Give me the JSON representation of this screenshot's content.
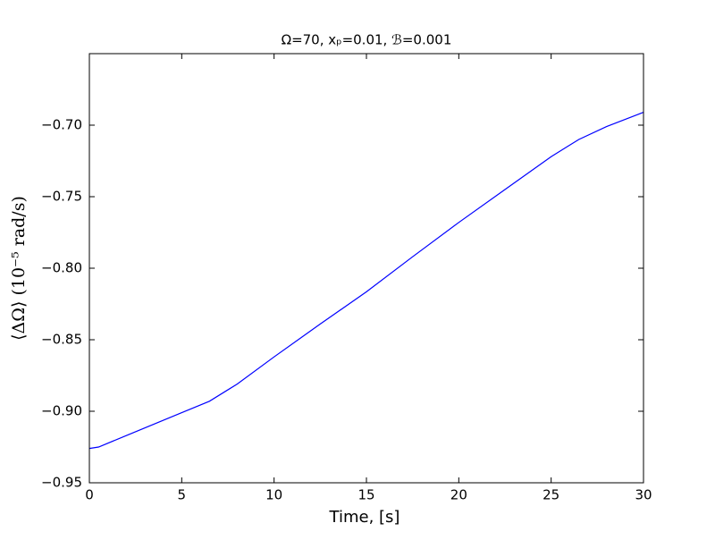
{
  "chart_data": {
    "type": "line",
    "title": "Ω=70, xₚ=0.01, ℬ=0.001",
    "x_label": "Time, [s]",
    "y_label": "⟨ΔΩ⟩    (10⁻⁵ rad/s)",
    "x": [
      0,
      0.5,
      2,
      5,
      6.5,
      8,
      10,
      12.5,
      15,
      17.5,
      20,
      22.5,
      25,
      26.5,
      28,
      30
    ],
    "values": [
      -0.926,
      -0.925,
      -0.917,
      -0.901,
      -0.893,
      -0.881,
      -0.862,
      -0.839,
      -0.8165,
      -0.792,
      -0.768,
      -0.745,
      -0.722,
      -0.71,
      -0.701,
      -0.691
    ],
    "color": "#0000ff",
    "xlim": [
      0,
      30
    ],
    "xticks": [
      0,
      5,
      10,
      15,
      20,
      25,
      30
    ],
    "ylim": [
      -0.95,
      -0.65
    ],
    "yticks": [
      {
        "value": -0.95,
        "label": "−0.95"
      },
      {
        "value": -0.9,
        "label": "−0.90"
      },
      {
        "value": -0.85,
        "label": "−0.85"
      },
      {
        "value": -0.8,
        "label": "−0.80"
      },
      {
        "value": -0.75,
        "label": "−0.75"
      },
      {
        "value": -0.7,
        "label": "−0.70"
      }
    ]
  }
}
